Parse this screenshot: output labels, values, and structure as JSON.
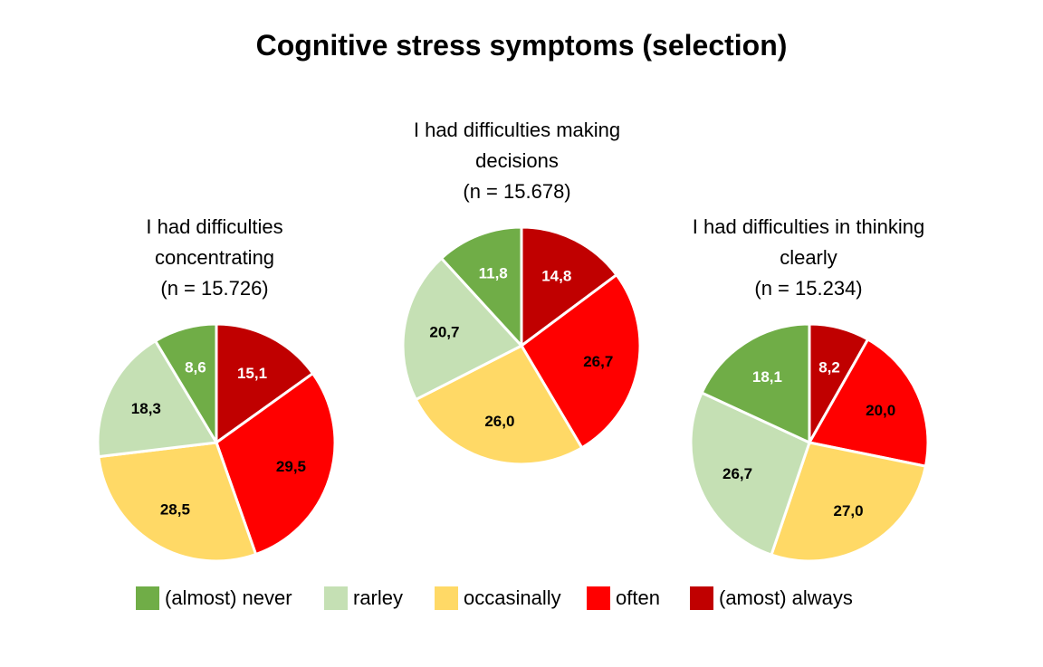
{
  "title": "Cognitive stress symptoms (selection)",
  "colors": {
    "almost_never": "#70AD47",
    "rarley": "#C5E0B4",
    "occasinally": "#FFD966",
    "often": "#FF0000",
    "almost_always": "#C00000"
  },
  "legend": [
    {
      "label": "(almost) never",
      "color": "#70AD47"
    },
    {
      "label": "rarley",
      "color": "#C5E0B4"
    },
    {
      "label": "occasinally",
      "color": "#FFD966"
    },
    {
      "label": "often",
      "color": "#FF0000"
    },
    {
      "label": "(amost) always",
      "color": "#C00000"
    }
  ],
  "chart_data": [
    {
      "type": "pie",
      "title_lines": [
        "I had difficulties",
        "concentrating",
        "(n = 15.726)"
      ],
      "categories": [
        "(amost) always",
        "often",
        "occasinally",
        "rarley",
        "(almost) never"
      ],
      "values": [
        15.1,
        29.5,
        28.5,
        18.3,
        8.6
      ],
      "labels": [
        "15,1",
        "29,5",
        "28,5",
        "18,3",
        "8,6"
      ]
    },
    {
      "type": "pie",
      "title_lines": [
        "I had difficulties making",
        "decisions",
        "(n = 15.678)"
      ],
      "categories": [
        "(amost) always",
        "often",
        "occasinally",
        "rarley",
        "(almost) never"
      ],
      "values": [
        14.8,
        26.7,
        26.0,
        20.7,
        11.8
      ],
      "labels": [
        "14,8",
        "26,7",
        "26,0",
        "20,7",
        "11,8"
      ]
    },
    {
      "type": "pie",
      "title_lines": [
        "I had difficulties in thinking",
        "clearly",
        "(n = 15.234)"
      ],
      "categories": [
        "(amost) always",
        "often",
        "occasinally",
        "rarley",
        "(almost) never"
      ],
      "values": [
        8.2,
        20.0,
        27.0,
        26.7,
        18.1
      ],
      "labels": [
        "8,2",
        "20,0",
        "27,0",
        "26,7",
        "18,1"
      ]
    }
  ]
}
